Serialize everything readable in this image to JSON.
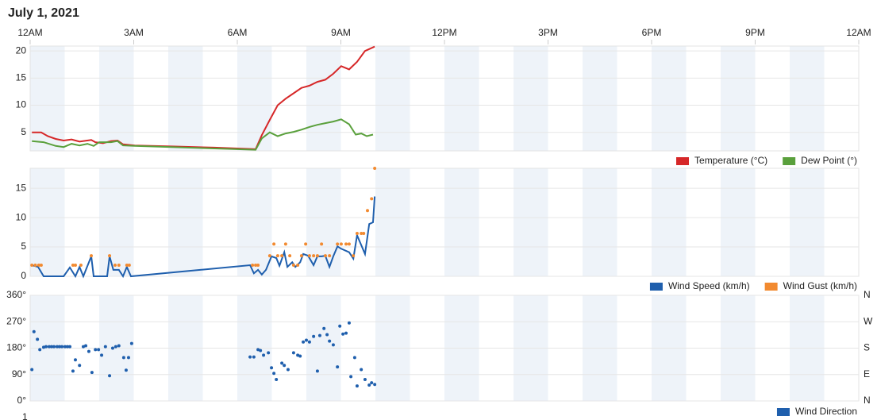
{
  "title": "July 1, 2021",
  "footer_tick": "1",
  "chart_data": [
    {
      "type": "line",
      "xlim": [
        0,
        24
      ],
      "xticks": [
        {
          "value": 0,
          "label": "12AM"
        },
        {
          "value": 3,
          "label": "3AM"
        },
        {
          "value": 6,
          "label": "6AM"
        },
        {
          "value": 9,
          "label": "9AM"
        },
        {
          "value": 12,
          "label": "12PM"
        },
        {
          "value": 15,
          "label": "3PM"
        },
        {
          "value": 18,
          "label": "6PM"
        },
        {
          "value": 21,
          "label": "9PM"
        },
        {
          "value": 24,
          "label": "12AM"
        }
      ],
      "ylim": [
        1.6,
        20.9
      ],
      "yticks": [
        5,
        10,
        15,
        20
      ],
      "grid": true,
      "series": [
        {
          "name": "Temperature (°C)",
          "color": "#d62728",
          "type": "line",
          "x": [
            0.05,
            0.32,
            0.51,
            0.74,
            0.97,
            1.2,
            1.43,
            1.77,
            1.89,
            2.11,
            2.34,
            2.53,
            2.69,
            3.03,
            4.18,
            5.33,
            6.53,
            6.71,
            6.94,
            7.17,
            7.4,
            7.63,
            7.86,
            8.09,
            8.32,
            8.55,
            8.78,
            9.01,
            9.24,
            9.47,
            9.7,
            9.98
          ],
          "values": [
            5.0,
            5.0,
            4.3,
            3.8,
            3.5,
            3.7,
            3.3,
            3.6,
            3.2,
            3.0,
            3.4,
            3.5,
            2.8,
            2.6,
            2.4,
            2.2,
            1.9,
            4.5,
            7.3,
            10.0,
            11.2,
            12.2,
            13.2,
            13.6,
            14.3,
            14.7,
            15.8,
            17.2,
            16.6,
            18.0,
            20.0,
            20.8
          ]
        },
        {
          "name": "Dew Point (°)",
          "color": "#5aa03c",
          "type": "line",
          "x": [
            0.05,
            0.39,
            0.74,
            0.97,
            1.2,
            1.43,
            1.66,
            1.84,
            2.0,
            2.34,
            2.53,
            2.69,
            3.03,
            6.53,
            6.71,
            6.94,
            7.17,
            7.4,
            7.63,
            7.86,
            8.09,
            8.32,
            8.55,
            8.78,
            9.01,
            9.24,
            9.43,
            9.59,
            9.75,
            9.93
          ],
          "values": [
            3.4,
            3.2,
            2.5,
            2.3,
            2.9,
            2.6,
            2.9,
            2.5,
            3.2,
            3.2,
            3.4,
            2.6,
            2.5,
            1.8,
            3.9,
            5.0,
            4.3,
            4.8,
            5.1,
            5.5,
            6.0,
            6.4,
            6.7,
            7.0,
            7.4,
            6.5,
            4.6,
            4.8,
            4.3,
            4.6
          ]
        }
      ]
    },
    {
      "type": "line",
      "xlim": [
        0,
        24
      ],
      "ylim": [
        0,
        18.4
      ],
      "yticks": [
        0,
        5,
        10,
        15
      ],
      "grid": true,
      "series": [
        {
          "name": "Wind Speed (km/h)",
          "color": "#1f5fad",
          "type": "line",
          "x": [
            0.05,
            0.23,
            0.39,
            0.97,
            1.15,
            1.31,
            1.43,
            1.54,
            1.77,
            1.84,
            2.23,
            2.3,
            2.41,
            2.57,
            2.69,
            2.8,
            2.92,
            6.37,
            6.48,
            6.6,
            6.71,
            6.83,
            6.99,
            7.13,
            7.22,
            7.36,
            7.45,
            7.59,
            7.68,
            7.82,
            7.91,
            8.05,
            8.21,
            8.32,
            8.44,
            8.55,
            8.67,
            8.78,
            8.9,
            9.01,
            9.24,
            9.36,
            9.47,
            9.7,
            9.82,
            9.93,
            9.98
          ],
          "values": [
            1.9,
            1.6,
            0,
            0,
            1.5,
            0,
            1.6,
            0,
            3.4,
            0,
            0,
            3.4,
            1.1,
            1.1,
            0,
            1.6,
            0,
            1.9,
            0.5,
            1.1,
            0.3,
            1.1,
            3.4,
            3.1,
            1.8,
            4.1,
            1.6,
            2.4,
            1.6,
            2.4,
            3.8,
            3.5,
            1.9,
            3.4,
            3.4,
            3.5,
            1.6,
            3.4,
            5.1,
            4.7,
            4.1,
            3.0,
            7.0,
            3.8,
            8.9,
            9.2,
            13.6
          ]
        },
        {
          "name": "Wind Gust (km/h)",
          "color": "#f28a30",
          "type": "scatter",
          "x": [
            0.05,
            0.15,
            0.25,
            0.32,
            1.24,
            1.31,
            1.47,
            1.77,
            2.3,
            2.46,
            2.57,
            2.8,
            2.87,
            6.44,
            6.53,
            6.6,
            6.94,
            7.06,
            7.17,
            7.29,
            7.4,
            7.52,
            7.63,
            7.75,
            7.86,
            7.98,
            8.09,
            8.21,
            8.32,
            8.44,
            8.55,
            8.67,
            8.9,
            9.01,
            9.15,
            9.24,
            9.36,
            9.47,
            9.59,
            9.66,
            9.77,
            9.89,
            9.98
          ],
          "values": [
            1.9,
            1.9,
            1.9,
            1.9,
            1.9,
            1.9,
            1.9,
            3.5,
            3.5,
            1.9,
            1.9,
            1.9,
            1.9,
            1.9,
            1.9,
            1.9,
            3.5,
            5.5,
            3.5,
            3.5,
            5.5,
            3.5,
            1.9,
            1.9,
            3.5,
            5.5,
            3.5,
            3.5,
            3.5,
            5.5,
            3.5,
            3.5,
            5.5,
            5.5,
            5.5,
            5.5,
            3.5,
            7.3,
            7.3,
            7.3,
            11.2,
            13.2,
            18.4
          ]
        }
      ]
    },
    {
      "type": "scatter",
      "xlim": [
        0,
        24
      ],
      "ylim": [
        0,
        360
      ],
      "yticks": [
        {
          "value": 0,
          "label": "0°"
        },
        {
          "value": 90,
          "label": "90°"
        },
        {
          "value": 180,
          "label": "180°"
        },
        {
          "value": 270,
          "label": "270°"
        },
        {
          "value": 360,
          "label": "360°"
        }
      ],
      "y2lim": [
        0,
        360
      ],
      "y2ticks": [
        {
          "value": 0,
          "label": "N"
        },
        {
          "value": 90,
          "label": "E"
        },
        {
          "value": 180,
          "label": "S"
        },
        {
          "value": 270,
          "label": "W"
        },
        {
          "value": 360,
          "label": "N"
        }
      ],
      "grid": true,
      "series": [
        {
          "name": "Wind Direction",
          "color": "#1f5fad",
          "type": "scatter",
          "x": [
            0.05,
            0.11,
            0.21,
            0.28,
            0.39,
            0.46,
            0.55,
            0.62,
            0.69,
            0.78,
            0.85,
            0.92,
            1.01,
            1.08,
            1.15,
            1.24,
            1.31,
            1.43,
            1.54,
            1.61,
            1.7,
            1.79,
            1.89,
            1.98,
            2.07,
            2.18,
            2.3,
            2.39,
            2.48,
            2.57,
            2.71,
            2.78,
            2.85,
            2.94,
            6.37,
            6.48,
            6.6,
            6.67,
            6.76,
            6.9,
            6.99,
            7.06,
            7.13,
            7.29,
            7.36,
            7.47,
            7.63,
            7.75,
            7.82,
            7.91,
            8.0,
            8.09,
            8.21,
            8.32,
            8.39,
            8.51,
            8.6,
            8.67,
            8.78,
            8.9,
            8.97,
            9.06,
            9.15,
            9.24,
            9.29,
            9.4,
            9.47,
            9.59,
            9.7,
            9.82,
            9.89,
            9.98
          ],
          "values": [
            107,
            236,
            210,
            175,
            183,
            185,
            185,
            185,
            185,
            185,
            185,
            185,
            185,
            185,
            185,
            102,
            140,
            121,
            185,
            188,
            169,
            97,
            175,
            175,
            156,
            185,
            86,
            180,
            185,
            188,
            148,
            105,
            148,
            196,
            150,
            150,
            175,
            172,
            156,
            164,
            113,
            94,
            73,
            129,
            121,
            107,
            164,
            156,
            153,
            201,
            207,
            201,
            220,
            102,
            223,
            247,
            226,
            204,
            191,
            116,
            255,
            228,
            231,
            266,
            83,
            148,
            51,
            107,
            73,
            54,
            62,
            56
          ]
        }
      ]
    }
  ]
}
